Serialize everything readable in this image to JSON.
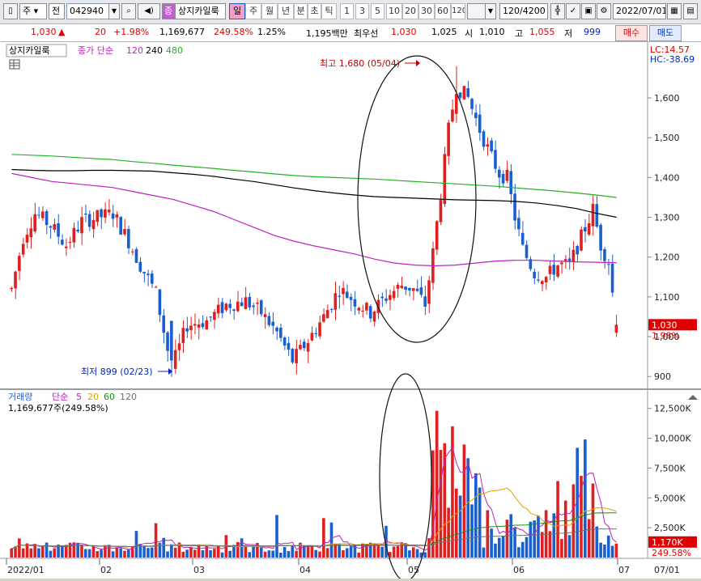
{
  "toolbar": {
    "market_select": "주",
    "type_select": "전",
    "code": "042940",
    "name_badge": "종",
    "stock_name": "상지카일룩",
    "periods": [
      "일",
      "주",
      "월",
      "년",
      "분",
      "초",
      "틱"
    ],
    "active_period": "일",
    "minute_units": [
      "1",
      "3",
      "5",
      "10",
      "20",
      "30",
      "60",
      "120"
    ],
    "count": "120",
    "total": "/4200",
    "date": "2022/07/01",
    "icons": [
      "cross-candle-icon",
      "check-icon",
      "save-icon",
      "gear-icon"
    ]
  },
  "quote": {
    "price": "1,030",
    "change_arrow": "▲",
    "change": "20",
    "change_pct": "+1.98%",
    "volume": "1,169,677",
    "volume_ratio": "249.58%",
    "turnover_pct": "1.25%",
    "amount": "1,195백만",
    "ask_label": "최우선",
    "ask": "1,030",
    "bid": "1,025",
    "open_label": "시",
    "open": "1,010",
    "high_label": "고",
    "high": "1,055",
    "low_label": "저",
    "low": "999",
    "buy_button": "매수",
    "sell_button": "매도"
  },
  "price_panel": {
    "legend_name": "상지카일룩",
    "legend_ma_label": "종가 단순",
    "ma_periods": [
      "120",
      "240",
      "480"
    ],
    "lc_label": "LC:14.57",
    "hc_label": "HC:-38.69",
    "high_annotation": "최고 1,680 (05/04)",
    "low_annotation": "최저 899 (02/23)",
    "current_price_tag": "1,030",
    "current_pct_tag": "1.98%",
    "y_ticks": [
      "1,600",
      "1,500",
      "1,400",
      "1,300",
      "1,200",
      "1,100",
      "1,000",
      "900"
    ]
  },
  "volume_panel": {
    "legend_name": "거래량",
    "legend_ma_label": "단순",
    "ma_periods": [
      "5",
      "20",
      "60",
      "120"
    ],
    "summary": "1,169,677주(249.58%)",
    "current_volume_tag": "1,170K",
    "current_pct_tag": "249.58%",
    "y_ticks": [
      "12,500K",
      "10,000K",
      "7,500K",
      "5,000K",
      "2,500K"
    ]
  },
  "x_axis": {
    "labels": [
      "2022/01",
      "02",
      "03",
      "04",
      "05",
      "06",
      "07",
      "07/01"
    ]
  },
  "colors": {
    "up": "#e02020",
    "down": "#1a5fd0",
    "ma120": "#c020c0",
    "ma240": "#000000",
    "ma480": "#22b022",
    "vol_ma5": "#c020c0",
    "vol_ma20": "#e0a000",
    "vol_ma60": "#109010",
    "vol_ma120": "#707070"
  },
  "chart_data": [
    {
      "type": "candlestick",
      "title": "상지카일룩 일봉",
      "ylim": [
        870,
        1720
      ],
      "high": {
        "value": 1680,
        "date": "05/04"
      },
      "low": {
        "value": 899,
        "date": "02/23"
      },
      "last": 1030,
      "series": [
        {
          "name": "종가 단순 120",
          "values": [
            1410,
            1400,
            1390,
            1385,
            1380,
            1375,
            1365,
            1355,
            1345,
            1330,
            1315,
            1295,
            1275,
            1255,
            1240,
            1228,
            1218,
            1208,
            1195,
            1185,
            1180,
            1178,
            1180,
            1185,
            1190,
            1192,
            1192,
            1190,
            1188,
            1187,
            1186
          ]
        },
        {
          "name": "종가 단순 240",
          "values": [
            1420,
            1418,
            1417,
            1417,
            1418,
            1418,
            1417,
            1416,
            1412,
            1408,
            1403,
            1396,
            1390,
            1382,
            1374,
            1367,
            1361,
            1356,
            1352,
            1350,
            1348,
            1346,
            1344,
            1343,
            1342,
            1340,
            1336,
            1330,
            1322,
            1310,
            1300
          ]
        },
        {
          "name": "종가 단순 480",
          "values": [
            1458,
            1456,
            1454,
            1451,
            1448,
            1445,
            1440,
            1436,
            1431,
            1427,
            1423,
            1418,
            1414,
            1409,
            1405,
            1402,
            1400,
            1398,
            1396,
            1393,
            1390,
            1387,
            1384,
            1381,
            1378,
            1374,
            1370,
            1366,
            1361,
            1356,
            1350
          ]
        }
      ]
    },
    {
      "type": "bar",
      "title": "거래량",
      "ylim": [
        0,
        13500
      ],
      "unit": "K",
      "last": 1170
    }
  ]
}
